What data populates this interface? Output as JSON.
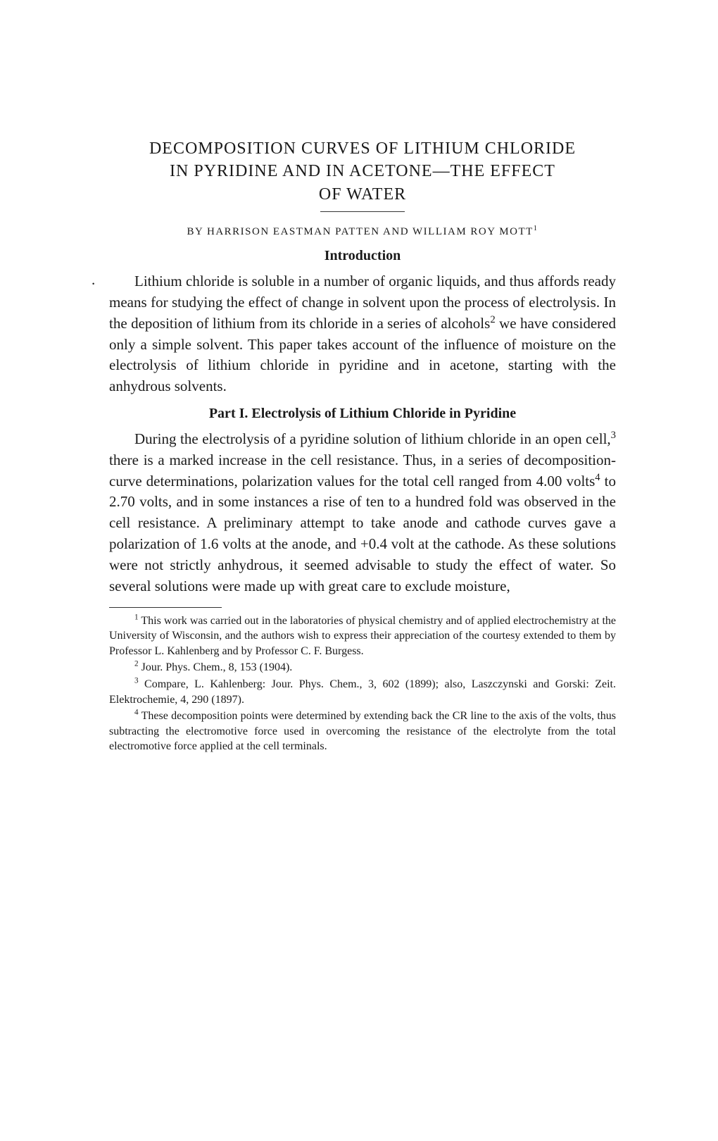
{
  "title_line1": "DECOMPOSITION CURVES OF LITHIUM CHLORIDE",
  "title_line2": "IN PYRIDINE AND IN ACETONE—THE EFFECT",
  "title_line3": "OF WATER",
  "byline_prefix": "BY HARRISON EASTMAN PATTEN AND WILLIAM ROY MOTT",
  "byline_sup": "1",
  "section_intro": "Introduction",
  "para1_a": "Lithium chloride is soluble in a number of organic liquids, and thus affords ready means for studying the effect of change in solvent upon the process of electrolysis. In the deposition of lithium from its chloride in a series of alcohols",
  "para1_sup1": "2",
  "para1_b": " we have considered only a simple solvent. This paper takes account of the influence of moisture on the electrolysis of lithium chloride in pyridine and in acetone, starting with the anhydrous solvents.",
  "part_heading": "Part I.  Electrolysis of Lithium Chloride in Pyridine",
  "para2_a": "During the electrolysis of a pyridine solution of lithium chloride in an open cell,",
  "para2_sup1": "3",
  "para2_b": " there is a marked increase in the cell resistance. Thus, in a series of decomposition-curve determinations, polarization values for the total cell ranged from 4.00 volts",
  "para2_sup2": "4",
  "para2_c": " to 2.70 volts, and in some instances a rise of ten to a hundred fold was observed in the cell resistance. A preliminary attempt to take anode and cathode curves gave a polarization of 1.6 volts at the anode, and +0.4 volt at the cathode. As these solutions were not strictly anhydrous, it seemed advisable to study the effect of water. So several solutions were made up with great care to exclude moisture,",
  "fn1_sup": "1",
  "fn1": " This work was carried out in the laboratories of physical chemistry and of applied electrochemistry at the University of Wisconsin, and the authors wish to express their appreciation of the courtesy extended to them by Professor L. Kahlenberg and by Professor C. F. Burgess.",
  "fn2_sup": "2",
  "fn2": " Jour. Phys. Chem., 8, 153 (1904).",
  "fn3_sup": "3",
  "fn3": " Compare, L. Kahlenberg: Jour. Phys. Chem., 3, 602 (1899); also, Laszczynski and Gorski: Zeit. Elektrochemie, 4, 290 (1897).",
  "fn4_sup": "4",
  "fn4": " These decomposition points were determined by extending back the CR line to the axis of the volts, thus subtracting the electromotive force used in overcoming the resistance of the electrolyte from the total electromotive force applied at the cell terminals."
}
